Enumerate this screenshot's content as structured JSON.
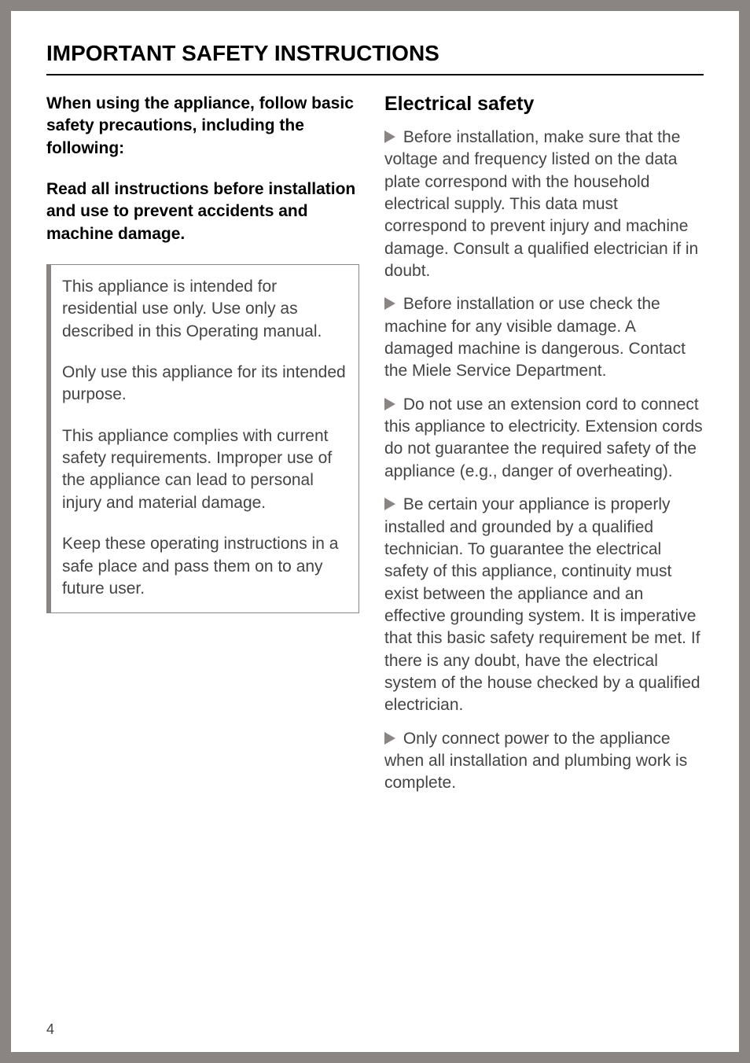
{
  "page": {
    "title": "IMPORTANT SAFETY INSTRUCTIONS",
    "number": "4",
    "background_color": "#8a8483",
    "page_color": "#ffffff",
    "title_fontsize": 28,
    "body_fontsize": 21,
    "heading_fontsize": 25,
    "text_color": "#444444",
    "title_color": "#000000",
    "bullet_color": "#8a8483",
    "border_color": "#888888"
  },
  "left": {
    "intro1": "When using the appliance, follow basic safety precautions, including the following:",
    "intro2": "Read all instructions before installation and use to prevent accidents and machine damage.",
    "box": {
      "p1": "This appliance is intended for residential use only. Use only as described in this Operating manual.",
      "p2": "Only use this appliance for its intended purpose.",
      "p3": "This appliance complies with current safety requirements. Improper use of the appliance can lead to personal injury and material damage.",
      "p4": "Keep these operating instructions in a safe place and pass them on to any future user."
    }
  },
  "right": {
    "heading": "Electrical safety",
    "bullets": {
      "b1": "Before installation, make sure that the voltage and frequency listed on the data plate correspond with the household electrical supply. This data must correspond to prevent injury and machine damage. Consult a qualified electrician if in doubt.",
      "b2": "Before installation or use check the machine for any visible damage. A damaged machine is dangerous. Contact the Miele Service Department.",
      "b3": "Do not use an extension cord to connect this appliance to electricity. Extension cords do not guarantee the required safety of the appliance (e.g., danger of overheating).",
      "b4": "Be certain your appliance is properly installed and grounded by a qualified technician. To guarantee the electrical safety of this appliance, continuity must exist between the appliance and an effective grounding system. It is imperative that this basic safety requirement be met. If there is any doubt, have the electrical system of the house checked by a qualified electrician.",
      "b5": "Only connect power to the appliance when all installation and plumbing work is complete."
    }
  }
}
